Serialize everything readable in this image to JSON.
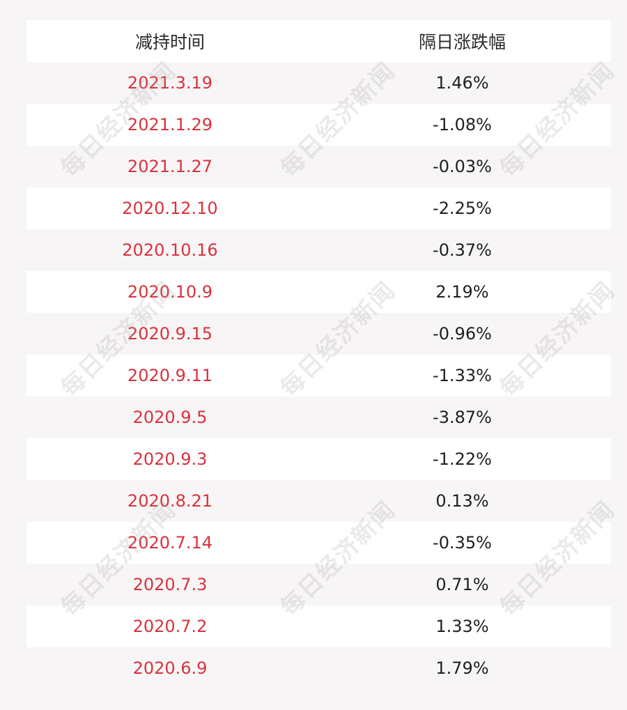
{
  "table": {
    "headers": [
      "减持时间",
      "隔日涨跌幅"
    ],
    "rows": [
      {
        "date": "2021.3.19",
        "change": "1.46%"
      },
      {
        "date": "2021.1.29",
        "change": "-1.08%"
      },
      {
        "date": "2021.1.27",
        "change": "-0.03%"
      },
      {
        "date": "2020.12.10",
        "change": "-2.25%"
      },
      {
        "date": "2020.10.16",
        "change": "-0.37%"
      },
      {
        "date": "2020.10.9",
        "change": "2.19%"
      },
      {
        "date": "2020.9.15",
        "change": "-0.96%"
      },
      {
        "date": "2020.9.11",
        "change": "-1.33%"
      },
      {
        "date": "2020.9.5",
        "change": "-3.87%"
      },
      {
        "date": "2020.9.3",
        "change": "-1.22%"
      },
      {
        "date": "2020.8.21",
        "change": "0.13%"
      },
      {
        "date": "2020.7.14",
        "change": "-0.35%"
      },
      {
        "date": "2020.7.3",
        "change": "0.71%"
      },
      {
        "date": "2020.7.2",
        "change": "1.33%"
      },
      {
        "date": "2020.6.9",
        "change": "1.79%"
      }
    ]
  },
  "watermark": {
    "text": "每日经济新闻"
  },
  "colors": {
    "date_text": "#d8323c",
    "value_text": "#1f1f1f",
    "header_text": "#2b2b2b",
    "row_white": "#ffffff",
    "row_tint": "#f8f5f6"
  }
}
